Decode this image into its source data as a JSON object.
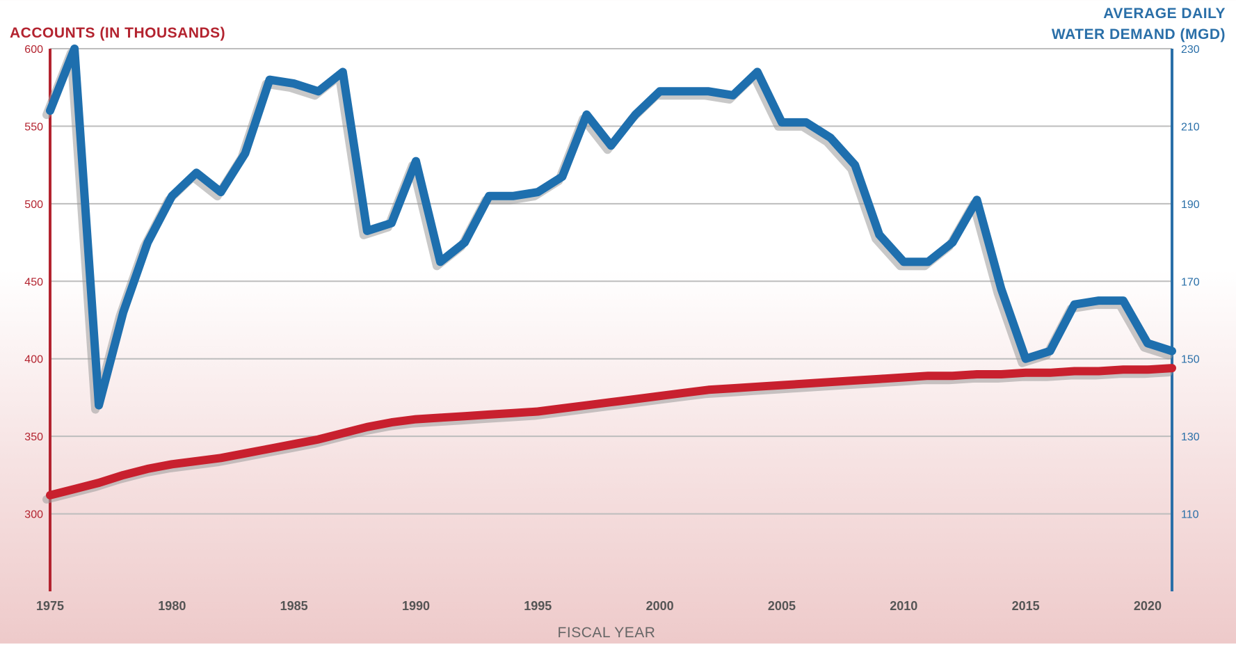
{
  "chart_data": {
    "type": "line",
    "left_axis_title": "Accounts (in thousands)",
    "right_axis_title_line1": "Average Daily",
    "right_axis_title_line2": "Water Demand (MGD)",
    "xlabel": "Fiscal Year",
    "x_range": [
      1975,
      2021
    ],
    "x_ticks": [
      1975,
      1980,
      1985,
      1990,
      1995,
      2000,
      2005,
      2010,
      2015,
      2020
    ],
    "left_axis": {
      "range": [
        250,
        600
      ],
      "ticks": [
        300,
        350,
        400,
        450,
        500,
        550,
        600
      ]
    },
    "right_axis": {
      "range": [
        90,
        230
      ],
      "ticks": [
        110,
        130,
        150,
        170,
        190,
        210,
        230
      ]
    },
    "grid": true,
    "colors": {
      "accounts": "#c8202e",
      "demand": "#1e6fae",
      "axis_left": "#b3232f",
      "axis_right": "#2a6fa8",
      "grid": "#bdbdbd"
    },
    "series": [
      {
        "key": "accounts",
        "axis": "left",
        "x": [
          1975,
          1976,
          1977,
          1978,
          1979,
          1980,
          1981,
          1982,
          1983,
          1984,
          1985,
          1986,
          1987,
          1988,
          1989,
          1990,
          1991,
          1992,
          1993,
          1994,
          1995,
          1996,
          1997,
          1998,
          1999,
          2000,
          2001,
          2002,
          2003,
          2004,
          2005,
          2006,
          2007,
          2008,
          2009,
          2010,
          2011,
          2012,
          2013,
          2014,
          2015,
          2016,
          2017,
          2018,
          2019,
          2020,
          2021
        ],
        "values": [
          312,
          316,
          320,
          325,
          329,
          332,
          334,
          336,
          339,
          342,
          345,
          348,
          352,
          356,
          359,
          361,
          362,
          363,
          364,
          365,
          366,
          368,
          370,
          372,
          374,
          376,
          378,
          380,
          381,
          382,
          383,
          384,
          385,
          386,
          387,
          388,
          389,
          389,
          390,
          390,
          391,
          391,
          392,
          392,
          393,
          393,
          394
        ]
      },
      {
        "key": "demand",
        "axis": "right",
        "x": [
          1975,
          1976,
          1977,
          1978,
          1979,
          1980,
          1981,
          1982,
          1983,
          1984,
          1985,
          1986,
          1987,
          1988,
          1989,
          1990,
          1991,
          1992,
          1993,
          1994,
          1995,
          1996,
          1997,
          1998,
          1999,
          2000,
          2001,
          2002,
          2003,
          2004,
          2005,
          2006,
          2007,
          2008,
          2009,
          2010,
          2011,
          2012,
          2013,
          2014,
          2015,
          2016,
          2017,
          2018,
          2019,
          2020,
          2021
        ],
        "values": [
          214,
          230,
          138,
          162,
          180,
          192,
          198,
          193,
          203,
          222,
          221,
          219,
          224,
          183,
          185,
          201,
          175,
          180,
          192,
          192,
          193,
          197,
          213,
          205,
          213,
          219,
          219,
          219,
          218,
          224,
          211,
          211,
          207,
          200,
          182,
          175,
          175,
          180,
          191,
          168,
          150,
          152,
          164,
          165,
          165,
          154,
          152
        ]
      }
    ]
  }
}
